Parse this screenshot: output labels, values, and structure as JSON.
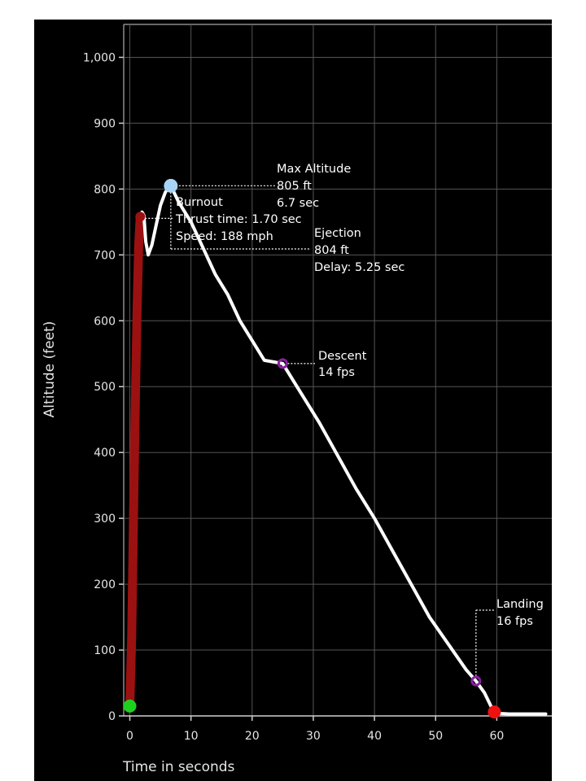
{
  "chart_data": {
    "type": "line",
    "xlabel": "Time in seconds",
    "ylabel": "Altitude (feet)",
    "xlim": [
      -1,
      69
    ],
    "ylim": [
      0,
      1050
    ],
    "xticks": [
      0,
      10,
      20,
      30,
      40,
      50,
      60
    ],
    "yticks": [
      0,
      100,
      200,
      300,
      400,
      500,
      600,
      700,
      800,
      900,
      1000
    ],
    "ytick_labels": [
      "0",
      "100",
      "200",
      "300",
      "400",
      "500",
      "600",
      "700",
      "800",
      "900",
      "1,000"
    ],
    "grid": true,
    "series": [
      {
        "segment": "thrust",
        "color": "#9b1111",
        "x": [
          0,
          0.3,
          0.6,
          0.9,
          1.2,
          1.45,
          1.7
        ],
        "y": [
          15,
          120,
          300,
          480,
          620,
          715,
          758
        ]
      },
      {
        "segment": "flight",
        "color": "#ffffff",
        "x": [
          1.7,
          2.0,
          2.3,
          2.6,
          3.0,
          3.6,
          4.3,
          5.0,
          5.8,
          6.4,
          6.7,
          8,
          10,
          12,
          14,
          16,
          18,
          20,
          22,
          25,
          28,
          31,
          34,
          37,
          40,
          43,
          46,
          49,
          52,
          55,
          56.6,
          58,
          59.3,
          60,
          62,
          64,
          66,
          68
        ],
        "y": [
          758,
          765,
          760,
          720,
          700,
          715,
          745,
          775,
          795,
          803,
          805,
          780,
          750,
          710,
          670,
          640,
          600,
          570,
          540,
          535,
          490,
          445,
          395,
          345,
          300,
          250,
          200,
          150,
          110,
          70,
          53,
          35,
          10,
          4,
          3,
          3,
          3,
          3
        ]
      }
    ],
    "events": [
      {
        "name": "start",
        "x": 0,
        "y": 15,
        "color": "#1ed11e",
        "lines": []
      },
      {
        "name": "burnout",
        "x": 1.7,
        "y": 758,
        "color": "#9b1111",
        "lines": [
          "Burnout",
          "Thrust time: 1.70 sec",
          "Speed: 188 mph"
        ]
      },
      {
        "name": "max-altitude",
        "x": 6.7,
        "y": 805,
        "color": "#a8d4f5",
        "lines": [
          "Max Altitude",
          "805 ft",
          "6.7  sec"
        ]
      },
      {
        "name": "ejection",
        "x": 6.7,
        "y": 804,
        "color": "#a8d4f5",
        "lines": [
          "Ejection",
          "804 ft",
          "Delay:  5.25 sec"
        ]
      },
      {
        "name": "descent",
        "x": 25,
        "y": 535,
        "color": "#8a1fa0",
        "lines": [
          "Descent",
          "14 fps"
        ]
      },
      {
        "name": "landing",
        "x": 56.6,
        "y": 53,
        "color": "#8a1fa0",
        "lines": [
          "Landing",
          "16 fps"
        ]
      },
      {
        "name": "touchdown",
        "x": 59.6,
        "y": 6,
        "color": "#ee1111",
        "lines": []
      }
    ]
  }
}
